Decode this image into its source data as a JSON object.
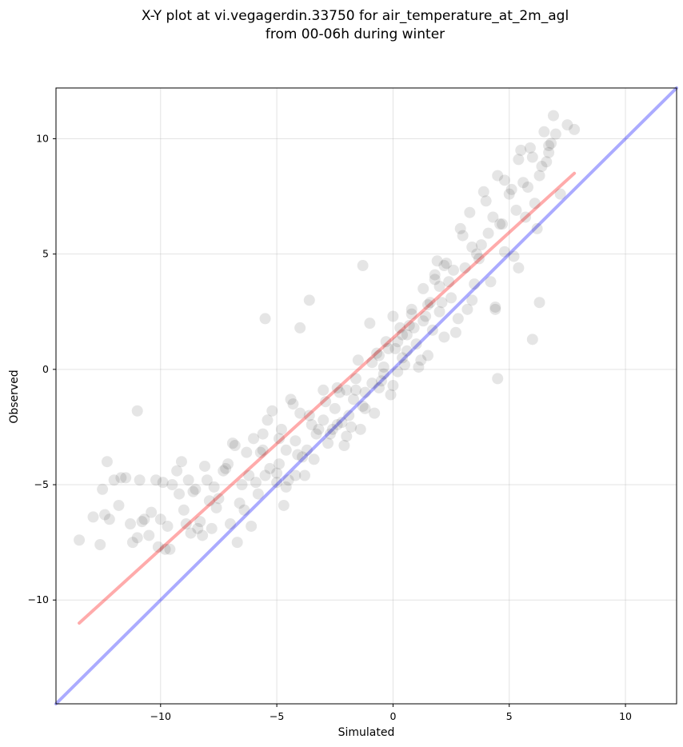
{
  "chart_data": {
    "type": "scatter",
    "title": "X-Y plot at vi.vegagerdin.33750 for air_temperature_at_2m_agl",
    "subtitle": "from 00-06h during winter",
    "xlabel": "Simulated",
    "ylabel": "Observed",
    "xlim": [
      -14.5,
      12.2
    ],
    "ylim": [
      -14.5,
      12.2
    ],
    "xticks": [
      -10,
      -5,
      0,
      5,
      10
    ],
    "yticks": [
      -10,
      -5,
      0,
      5,
      10
    ],
    "xtick_labels": [
      "−10",
      "−5",
      "0",
      "5",
      "10"
    ],
    "ytick_labels": [
      "−10",
      "−5",
      "0",
      "5",
      "10"
    ],
    "grid": true,
    "series": [
      {
        "kind": "points",
        "color": "#000000",
        "opacity": 0.1,
        "x": [
          -13.5,
          -12.6,
          -12.5,
          -12.4,
          -12.3,
          -12.2,
          -12.0,
          -11.8,
          -11.5,
          -11.3,
          -11.0,
          -10.8,
          -10.5,
          -10.2,
          -10.0,
          -9.8,
          -9.5,
          -9.2,
          -9.0,
          -8.8,
          -8.5,
          -8.3,
          -8.0,
          -7.8,
          -7.5,
          -7.2,
          -7.0,
          -6.8,
          -6.5,
          -6.2,
          -6.0,
          -5.7,
          -5.5,
          -5.2,
          -5.0,
          -4.8,
          -4.5,
          -4.2,
          -4.0,
          -3.7,
          -3.5,
          -3.2,
          -3.0,
          -2.7,
          -2.5,
          -2.2,
          -2.0,
          -1.7,
          -1.5,
          -1.2,
          -1.0,
          -0.7,
          -0.5,
          -0.2,
          0.0,
          0.3,
          0.5,
          0.8,
          1.0,
          1.3,
          1.5,
          1.8,
          2.0,
          2.3,
          2.5,
          2.8,
          3.0,
          3.3,
          3.5,
          3.8,
          4.0,
          4.3,
          4.5,
          4.8,
          5.0,
          5.3,
          5.5,
          5.8,
          6.0,
          6.3,
          6.5,
          6.8,
          7.0,
          -11.2,
          -10.9,
          -10.4,
          -9.7,
          -9.3,
          -8.9,
          -8.6,
          -8.1,
          -7.6,
          -7.3,
          -6.9,
          -6.6,
          -6.3,
          -5.9,
          -5.6,
          -5.3,
          -4.9,
          -4.6,
          -4.3,
          -3.9,
          -3.6,
          -3.3,
          -2.9,
          -2.6,
          -2.3,
          -1.9,
          -1.6,
          -1.3,
          -0.9,
          -0.6,
          -0.3,
          0.1,
          0.4,
          0.7,
          1.1,
          1.4,
          1.7,
          2.1,
          2.4,
          2.7,
          3.1,
          3.4,
          3.7,
          4.1,
          4.4,
          4.7,
          5.1,
          5.4,
          5.7,
          6.1,
          6.4,
          6.7,
          -9.6,
          -8.7,
          -7.9,
          -6.7,
          -5.8,
          -4.7,
          -3.8,
          -2.8,
          -1.8,
          -0.8,
          0.2,
          1.2,
          2.2,
          3.2,
          4.2,
          5.2,
          6.2,
          7.2,
          -10.7,
          -9.9,
          -9.1,
          -8.4,
          -7.7,
          -7.1,
          -6.4,
          -5.4,
          -4.4,
          -3.4,
          -2.4,
          -1.4,
          -0.4,
          0.6,
          1.6,
          2.6,
          3.6,
          4.6,
          5.6,
          6.6,
          -12.9,
          -11.7,
          -10.1,
          -8.2,
          -6.1,
          -4.1,
          -2.1,
          -0.1,
          1.9,
          3.9,
          5.9,
          7.5,
          -5.0,
          -4.6,
          -4.2,
          -3.0,
          -2.4,
          -1.6,
          -0.9,
          -0.4,
          0.2,
          0.6,
          0.9,
          1.3,
          0.4,
          0.0,
          -0.6,
          1.8,
          2.2,
          2.0,
          1.5,
          0.8,
          -3.6,
          -5.6,
          -4.9,
          -2.0,
          -1.2,
          2.9,
          3.4,
          4.8,
          5.4,
          6.9,
          -5.5,
          -4.0,
          -1.3,
          6.3,
          6.0,
          7.8,
          6.7,
          4.5,
          4.4,
          -11.0
        ],
        "y": [
          -7.4,
          -7.6,
          -5.2,
          -6.3,
          -4.0,
          -6.5,
          -4.8,
          -5.9,
          -4.7,
          -6.7,
          -7.3,
          -6.6,
          -7.2,
          -4.8,
          -6.5,
          -7.8,
          -5.0,
          -5.4,
          -6.1,
          -4.8,
          -5.2,
          -6.6,
          -4.8,
          -6.9,
          -5.6,
          -4.3,
          -6.7,
          -3.3,
          -5.0,
          -4.6,
          -3.0,
          -3.6,
          -4.6,
          -1.8,
          -4.9,
          -2.6,
          -4.8,
          -3.1,
          -1.9,
          -3.5,
          -2.4,
          -2.6,
          -0.9,
          -2.8,
          -1.7,
          -2.3,
          -0.9,
          -1.3,
          0.4,
          -1.0,
          2.0,
          0.7,
          -0.5,
          0.9,
          -0.7,
          1.8,
          0.2,
          2.6,
          1.1,
          3.5,
          0.6,
          3.9,
          2.5,
          4.6,
          3.1,
          2.2,
          5.8,
          6.8,
          3.7,
          5.4,
          7.3,
          6.6,
          8.4,
          5.1,
          7.6,
          6.9,
          9.5,
          7.9,
          9.2,
          8.4,
          10.3,
          9.8,
          10.2,
          -7.5,
          -4.8,
          -6.2,
          -6.8,
          -4.4,
          -6.7,
          -5.3,
          -4.2,
          -6.0,
          -4.4,
          -3.2,
          -5.8,
          -3.6,
          -4.9,
          -2.8,
          -4.3,
          -3.0,
          -3.5,
          -1.5,
          -3.8,
          -2.0,
          -2.8,
          -1.4,
          -2.6,
          -1.0,
          -2.0,
          -0.4,
          -1.6,
          0.3,
          -0.8,
          1.2,
          0.9,
          0.5,
          1.9,
          0.1,
          2.3,
          1.7,
          2.9,
          3.8,
          1.6,
          4.4,
          3.0,
          4.8,
          5.9,
          2.7,
          6.3,
          7.8,
          4.4,
          6.6,
          7.2,
          8.8,
          9.4,
          -7.8,
          -7.1,
          -5.7,
          -7.5,
          -5.4,
          -5.9,
          -4.6,
          -3.2,
          -2.5,
          -1.9,
          -0.1,
          0.4,
          1.4,
          2.6,
          3.8,
          4.9,
          6.1,
          7.6,
          -6.5,
          -4.9,
          -4.0,
          -6.9,
          -5.1,
          -4.1,
          -6.1,
          -2.2,
          -1.3,
          -3.9,
          -0.8,
          -2.6,
          -0.2,
          1.5,
          2.9,
          4.3,
          5.0,
          6.3,
          8.1,
          9.0,
          -6.4,
          -4.7,
          -7.7,
          -7.2,
          -6.8,
          -3.7,
          -3.3,
          -1.1,
          4.7,
          7.7,
          9.6,
          10.6,
          -4.5,
          -5.1,
          -4.6,
          -2.2,
          -2.4,
          -0.9,
          -0.6,
          0.1,
          1.2,
          0.8,
          1.8,
          2.1,
          1.5,
          2.3,
          0.6,
          4.1,
          4.5,
          3.6,
          2.8,
          2.4,
          3.0,
          -3.5,
          -4.1,
          -2.9,
          -1.7,
          6.1,
          5.3,
          8.2,
          9.1,
          11.0,
          2.2,
          1.8,
          4.5,
          2.9,
          1.3,
          10.4,
          9.7,
          -0.4,
          2.6,
          -1.8
        ]
      },
      {
        "kind": "line",
        "name": "",
        "color": "#ff0000",
        "opacity": 0.33,
        "x": [
          -13.5,
          7.8
        ],
        "y": [
          -11.0,
          8.5
        ]
      },
      {
        "kind": "line",
        "name": "",
        "color": "#0000ff",
        "opacity": 0.33,
        "x": [
          -14.5,
          12.2
        ],
        "y": [
          -14.5,
          12.2
        ]
      }
    ]
  }
}
